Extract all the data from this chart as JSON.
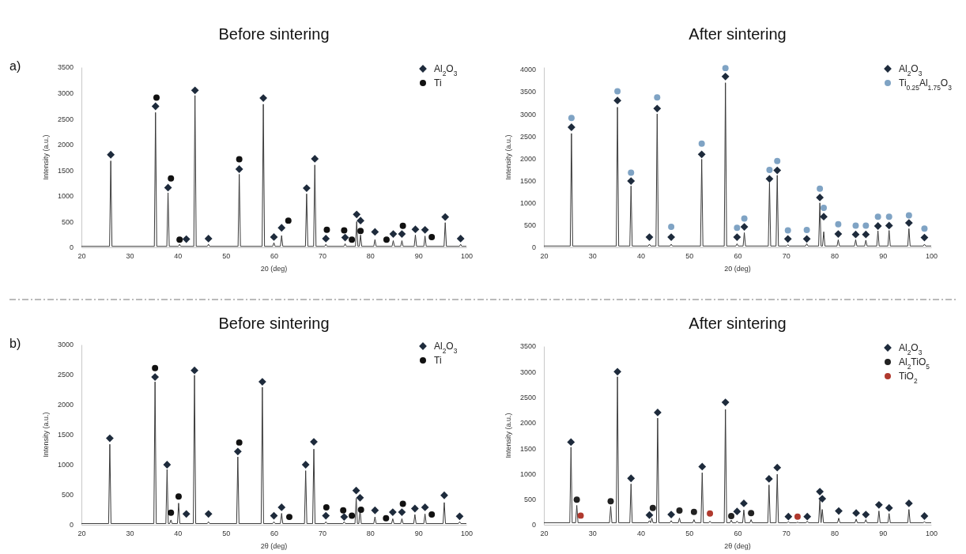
{
  "chart_data": [
    {
      "type": "line",
      "title": "Before sintering",
      "xlabel": "20 (deg)",
      "ylabel": "Intensity (a.u.)",
      "xlim": [
        20,
        100
      ],
      "xticks": [
        20,
        30,
        40,
        50,
        60,
        70,
        80,
        90,
        100
      ],
      "ylim": [
        0,
        3500
      ],
      "yticks": [
        0,
        500,
        1000,
        1500,
        2000,
        2500,
        3000,
        3500
      ],
      "legend": "top right",
      "annotations": [
        "a)"
      ],
      "series": [
        {
          "color": "#3a3a3a",
          "x": [
            20,
            25.85,
            26.1,
            26.35,
            35.15,
            35.4,
            35.65,
            37.75,
            38.0,
            38.25,
            40.15,
            40.4,
            40.65,
            43.35,
            43.6,
            43.85,
            46.15,
            46.4,
            46.65,
            52.55,
            52.8,
            53.05,
            57.55,
            57.8,
            58.05,
            59.75,
            60.0,
            60.25,
            61.35,
            61.6,
            61.85,
            66.55,
            66.8,
            67.05,
            68.25,
            68.5,
            68.75,
            70.55,
            70.8,
            71.05,
            74.55,
            74.8,
            75.05,
            76.95,
            77.2,
            77.45,
            77.75,
            78.0,
            78.25,
            80.75,
            81.0,
            81.25,
            84.55,
            84.8,
            85.05,
            86.35,
            86.6,
            86.85,
            89.15,
            89.4,
            89.65,
            91.15,
            91.4,
            91.65,
            95.35,
            95.6,
            95.85,
            98.55,
            98.8,
            99.05,
            100
          ],
          "values": [
            20,
            20,
            1680,
            20,
            20,
            2620,
            20,
            20,
            1060,
            20,
            20,
            60,
            20,
            20,
            2950,
            20,
            20,
            60,
            20,
            20,
            1420,
            20,
            20,
            2780,
            20,
            20,
            90,
            20,
            20,
            230,
            20,
            20,
            1040,
            20,
            20,
            1600,
            20,
            20,
            60,
            20,
            20,
            70,
            20,
            20,
            500,
            20,
            20,
            240,
            20,
            20,
            150,
            20,
            20,
            130,
            20,
            20,
            130,
            20,
            20,
            240,
            20,
            20,
            220,
            20,
            20,
            480,
            20,
            20,
            60,
            20,
            20
          ]
        },
        {
          "type": "scatter",
          "name": "Al$_{2}$O$_{3}$",
          "color": "#1e2b3c",
          "marker": "diamond",
          "x": [
            26.1,
            35.4,
            38.0,
            41.8,
            43.6,
            46.4,
            52.8,
            57.8,
            60.0,
            61.6,
            66.8,
            68.5,
            70.8,
            74.8,
            77.2,
            78.0,
            81.0,
            84.8,
            86.6,
            89.4,
            91.4,
            95.6,
            98.8
          ],
          "values": [
            1800,
            2740,
            1160,
            160,
            3050,
            170,
            1520,
            2900,
            200,
            380,
            1150,
            1720,
            170,
            190,
            640,
            520,
            300,
            260,
            260,
            350,
            340,
            590,
            170
          ]
        },
        {
          "type": "scatter",
          "name": "Ti",
          "color": "#111111",
          "marker": "circle",
          "x": [
            35.6,
            38.6,
            40.4,
            52.8,
            63.0,
            71.0,
            74.6,
            76.2,
            78.0,
            83.4,
            86.8,
            92.8
          ],
          "values": [
            2910,
            1340,
            150,
            1710,
            520,
            340,
            330,
            150,
            320,
            150,
            420,
            200
          ]
        }
      ]
    },
    {
      "type": "line",
      "title": "After sintering",
      "xlabel": "20 (deg)",
      "ylabel": "Intensity (a.u.)",
      "xlim": [
        20,
        100
      ],
      "xticks": [
        20,
        30,
        40,
        50,
        60,
        70,
        80,
        90,
        100
      ],
      "ylim": [
        0,
        4050
      ],
      "yticks": [
        0,
        500,
        1000,
        1500,
        2000,
        2500,
        3000,
        3500,
        4000
      ],
      "legend": "top right",
      "series": [
        {
          "color": "#3a3a3a",
          "x": [
            20,
            25.45,
            25.7,
            25.95,
            34.95,
            35.2,
            35.45,
            37.75,
            38.0,
            38.25,
            41.55,
            41.8,
            42.05,
            43.15,
            43.4,
            43.65,
            46.05,
            46.3,
            46.55,
            52.35,
            52.6,
            52.85,
            57.25,
            57.5,
            57.75,
            59.65,
            59.9,
            60.15,
            61.15,
            61.4,
            61.65,
            66.35,
            66.6,
            66.85,
            67.95,
            68.2,
            68.45,
            70.15,
            70.4,
            70.65,
            74.05,
            74.3,
            74.55,
            76.75,
            77.0,
            77.25,
            77.55,
            77.8,
            78.05,
            80.55,
            80.8,
            81.05,
            84.15,
            84.4,
            84.65,
            86.25,
            86.5,
            86.75,
            88.75,
            89.0,
            89.25,
            91.05,
            91.3,
            91.55,
            95.15,
            95.4,
            95.65,
            98.35,
            98.6,
            98.85,
            100
          ],
          "values": [
            30,
            30,
            2560,
            30,
            30,
            3150,
            30,
            30,
            1380,
            30,
            30,
            70,
            30,
            30,
            3000,
            30,
            30,
            70,
            30,
            30,
            1980,
            30,
            30,
            3700,
            30,
            30,
            80,
            30,
            30,
            330,
            30,
            30,
            1450,
            30,
            30,
            1620,
            30,
            30,
            60,
            30,
            30,
            80,
            30,
            30,
            1000,
            30,
            30,
            350,
            30,
            30,
            170,
            30,
            30,
            170,
            30,
            30,
            160,
            30,
            30,
            370,
            30,
            30,
            380,
            30,
            30,
            420,
            30,
            30,
            70,
            30,
            30
          ]
        },
        {
          "type": "scatter",
          "name": "Al$_{2}$O$_{3}$",
          "color": "#1e2b3c",
          "marker": "diamond",
          "x": [
            25.7,
            35.2,
            38.0,
            41.8,
            43.4,
            46.3,
            52.6,
            57.5,
            59.9,
            61.4,
            66.6,
            68.2,
            70.4,
            74.3,
            77.0,
            77.8,
            80.8,
            84.4,
            86.5,
            89.0,
            91.3,
            95.4,
            98.6
          ],
          "values": [
            2700,
            3300,
            1490,
            230,
            3120,
            230,
            2090,
            3840,
            230,
            460,
            1540,
            1730,
            190,
            190,
            1120,
            690,
            300,
            290,
            290,
            480,
            490,
            550,
            220
          ]
        },
        {
          "type": "scatter",
          "name": "Ti$_{0.25}$Al$_{1.75}$O$_{3}$",
          "color": "#7fa3c4",
          "marker": "circle",
          "x": [
            25.7,
            35.2,
            38.0,
            43.4,
            46.3,
            52.6,
            57.5,
            59.9,
            61.4,
            66.6,
            68.2,
            70.4,
            74.3,
            77.0,
            77.8,
            80.8,
            84.4,
            86.5,
            89.0,
            91.3,
            95.4,
            98.6
          ],
          "values": [
            2910,
            3510,
            1680,
            3370,
            460,
            2330,
            4030,
            440,
            650,
            1740,
            1940,
            380,
            390,
            1320,
            890,
            520,
            490,
            490,
            690,
            690,
            720,
            420
          ]
        }
      ]
    },
    {
      "type": "line",
      "title": "Before sintering",
      "xlabel": "2θ (deg)",
      "ylabel": "Intensity (a.u.)",
      "xlim": [
        20,
        100
      ],
      "xticks": [
        20,
        30,
        40,
        50,
        60,
        70,
        80,
        90,
        100
      ],
      "ylim": [
        0,
        3000
      ],
      "yticks": [
        0,
        500,
        1000,
        1500,
        2000,
        2500,
        3000
      ],
      "legend": "top right",
      "annotations": [
        "b)"
      ],
      "series": [
        {
          "color": "#3a3a3a",
          "x": [
            20,
            25.65,
            25.9,
            26.15,
            35.05,
            35.3,
            35.55,
            37.55,
            37.8,
            38.05,
            38.35,
            38.6,
            38.85,
            39.95,
            40.2,
            40.45,
            43.25,
            43.5,
            43.75,
            46.15,
            46.4,
            46.65,
            52.25,
            52.5,
            52.75,
            57.35,
            57.6,
            57.85,
            59.75,
            60.0,
            60.25,
            61.35,
            61.6,
            61.85,
            66.35,
            66.6,
            66.85,
            68.05,
            68.3,
            68.55,
            70.55,
            70.8,
            71.05,
            74.35,
            74.6,
            74.85,
            76.85,
            77.1,
            77.35,
            77.65,
            77.9,
            78.15,
            80.75,
            81.0,
            81.25,
            84.45,
            84.7,
            84.95,
            86.35,
            86.6,
            86.85,
            89.05,
            89.3,
            89.55,
            91.15,
            91.4,
            91.65,
            95.15,
            95.4,
            95.65,
            98.35,
            98.6,
            98.85,
            100
          ],
          "values": [
            20,
            20,
            1340,
            20,
            20,
            2380,
            20,
            20,
            920,
            20,
            20,
            80,
            20,
            20,
            360,
            20,
            20,
            2490,
            20,
            20,
            50,
            20,
            20,
            1130,
            20,
            20,
            2290,
            20,
            20,
            50,
            20,
            20,
            190,
            20,
            20,
            900,
            20,
            20,
            1260,
            20,
            20,
            50,
            20,
            20,
            50,
            20,
            20,
            440,
            20,
            20,
            250,
            20,
            20,
            130,
            20,
            20,
            100,
            20,
            20,
            100,
            20,
            20,
            170,
            20,
            20,
            180,
            20,
            20,
            370,
            20,
            20,
            50,
            20,
            20
          ]
        },
        {
          "type": "scatter",
          "name": "Al$_{2}$O$_{3}$",
          "color": "#1e2b3c",
          "marker": "diamond",
          "x": [
            25.9,
            35.3,
            37.8,
            41.8,
            43.5,
            46.4,
            52.5,
            57.6,
            60.0,
            61.6,
            66.6,
            68.3,
            70.8,
            74.6,
            77.1,
            77.9,
            81.0,
            84.7,
            86.6,
            89.3,
            91.4,
            95.4,
            98.6
          ],
          "values": [
            1440,
            2460,
            1000,
            180,
            2570,
            180,
            1220,
            2380,
            150,
            290,
            1000,
            1380,
            150,
            130,
            570,
            450,
            240,
            210,
            210,
            270,
            290,
            490,
            140
          ]
        },
        {
          "type": "scatter",
          "name": "Ti",
          "color": "#111111",
          "marker": "circle",
          "x": [
            35.3,
            38.6,
            40.2,
            52.8,
            63.2,
            70.9,
            74.4,
            76.2,
            78.1,
            83.3,
            86.8,
            92.8
          ],
          "values": [
            2610,
            200,
            470,
            1370,
            130,
            290,
            240,
            150,
            250,
            110,
            350,
            170
          ]
        }
      ]
    },
    {
      "type": "line",
      "title": "After sintering",
      "xlabel": "2θ (deg)",
      "ylabel": "Intensity (a.u.)",
      "xlim": [
        20,
        100
      ],
      "xticks": [
        20,
        30,
        40,
        50,
        60,
        70,
        80,
        90,
        100
      ],
      "ylim": [
        0,
        3500
      ],
      "yticks": [
        0,
        500,
        1000,
        1500,
        2000,
        2500,
        3000,
        3500
      ],
      "legend": "top right",
      "series": [
        {
          "color": "#3a3a3a",
          "x": [
            20,
            25.35,
            25.6,
            25.85,
            26.55,
            26.8,
            27.05,
            33.55,
            33.8,
            34.05,
            34.95,
            35.2,
            35.45,
            37.75,
            38.0,
            38.25,
            41.55,
            41.8,
            42.05,
            42.05,
            42.3,
            42.55,
            43.25,
            43.5,
            43.75,
            46.05,
            46.3,
            46.55,
            47.75,
            48.0,
            48.25,
            50.75,
            51.0,
            51.25,
            52.45,
            52.7,
            52.95,
            54.05,
            54.3,
            54.55,
            57.25,
            57.5,
            57.75,
            58.45,
            58.7,
            58.95,
            59.65,
            59.9,
            60.15,
            61.05,
            61.3,
            61.55,
            62.55,
            62.8,
            63.05,
            66.25,
            66.5,
            66.75,
            67.95,
            68.2,
            68.45,
            70.25,
            70.5,
            70.75,
            72.15,
            72.4,
            72.65,
            74.15,
            74.4,
            74.65,
            76.75,
            77.0,
            77.25,
            77.25,
            77.5,
            77.75,
            80.65,
            80.9,
            81.15,
            84.25,
            84.5,
            84.75,
            86.25,
            86.5,
            86.75,
            88.95,
            89.2,
            89.45,
            91.05,
            91.3,
            91.55,
            95.15,
            95.4,
            95.65,
            98.35,
            98.6,
            98.85,
            100
          ],
          "values": [
            40,
            40,
            1520,
            40,
            40,
            380,
            40,
            40,
            360,
            40,
            40,
            2900,
            40,
            40,
            800,
            40,
            40,
            80,
            40,
            40,
            130,
            40,
            40,
            2090,
            40,
            40,
            80,
            40,
            40,
            130,
            40,
            40,
            100,
            40,
            40,
            1020,
            40,
            40,
            70,
            40,
            40,
            2260,
            40,
            40,
            90,
            40,
            40,
            70,
            40,
            40,
            290,
            40,
            40,
            100,
            40,
            40,
            780,
            40,
            40,
            990,
            40,
            40,
            60,
            40,
            40,
            50,
            40,
            40,
            70,
            40,
            40,
            490,
            40,
            40,
            300,
            40,
            40,
            130,
            40,
            40,
            110,
            40,
            40,
            100,
            40,
            40,
            270,
            40,
            40,
            220,
            40,
            40,
            300,
            40,
            40,
            60,
            40,
            40
          ]
        },
        {
          "type": "scatter",
          "name": "Al$_{2}$O$_{3}$",
          "color": "#1e2b3c",
          "marker": "diamond",
          "x": [
            25.6,
            35.2,
            38.0,
            41.8,
            43.5,
            46.3,
            52.7,
            57.5,
            59.9,
            61.3,
            66.5,
            68.2,
            70.5,
            74.4,
            77.0,
            77.5,
            80.9,
            84.5,
            86.5,
            89.2,
            91.3,
            95.4,
            98.6
          ],
          "values": [
            1620,
            3000,
            910,
            190,
            2200,
            200,
            1140,
            2400,
            260,
            420,
            900,
            1120,
            160,
            160,
            650,
            510,
            270,
            230,
            200,
            390,
            330,
            420,
            170
          ]
        },
        {
          "type": "scatter",
          "name": "Al$_{2}$TiO$_{5}$",
          "color": "#222222",
          "marker": "circle",
          "x": [
            26.8,
            33.8,
            42.5,
            48.0,
            51.0,
            58.7,
            62.8
          ],
          "values": [
            490,
            460,
            330,
            280,
            250,
            170,
            230
          ]
        },
        {
          "type": "scatter",
          "name": "TiO$_{2}$",
          "color": "#b0392e",
          "marker": "circle",
          "x": [
            27.6,
            54.3,
            72.4
          ],
          "values": [
            180,
            220,
            160
          ]
        }
      ]
    }
  ]
}
